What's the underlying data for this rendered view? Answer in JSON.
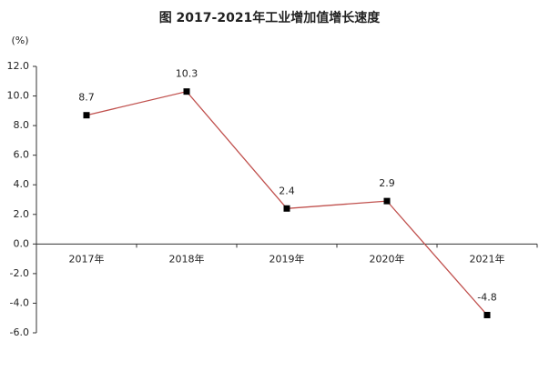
{
  "chart_data": {
    "type": "line",
    "title": "图    2017-2021年工业增加值增长速度",
    "y_unit": "(%)",
    "categories": [
      "2017年",
      "2018年",
      "2019年",
      "2020年",
      "2021年"
    ],
    "series": [
      {
        "name": "工业增加值增长速度",
        "color": "#c0504d",
        "marker_color": "#000000",
        "values": [
          8.7,
          10.3,
          2.4,
          2.9,
          -4.8
        ]
      }
    ],
    "ylim": [
      -6,
      12
    ],
    "yticks": [
      {
        "value": -6,
        "label": "-6.0"
      },
      {
        "value": -4,
        "label": "-4.0"
      },
      {
        "value": -2,
        "label": "-2.0"
      },
      {
        "value": 0,
        "label": "0.0"
      },
      {
        "value": 2,
        "label": "2.0"
      },
      {
        "value": 4,
        "label": "4.0"
      },
      {
        "value": 6,
        "label": "6.0"
      },
      {
        "value": 8,
        "label": "8.0"
      },
      {
        "value": 10,
        "label": "10.0"
      },
      {
        "value": 12,
        "label": "12.0"
      }
    ],
    "grid": false
  }
}
